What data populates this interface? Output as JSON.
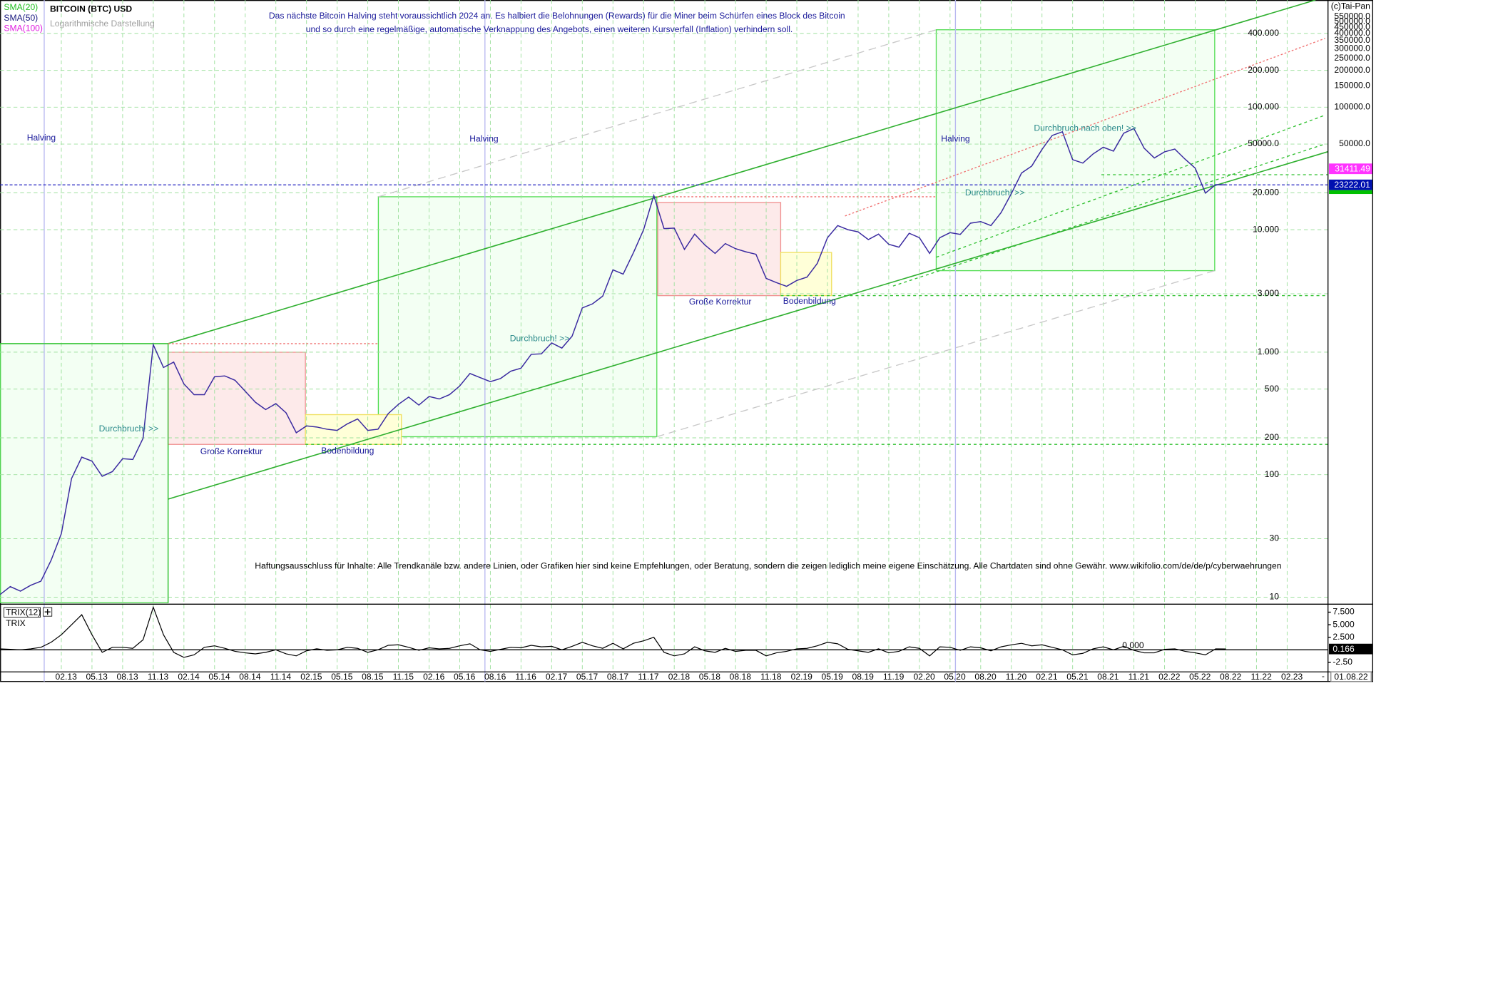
{
  "chart_data": {
    "type": "line",
    "title": "BITCOIN (BTC) USD",
    "subtitle": "Logarithmische Darstellung",
    "note": [
      "Das nächste Bitcoin Halving steht voraussichtlich 2024 an. Es halbiert die Belohnungen (Rewards) für die Miner beim Schürfen eines Block des Bitcoin",
      "und so durch eine regelmäßige, automatische Verknappung des Angebots, einen weiteren Kursverfall (Inflation) verhindern soll."
    ],
    "copyright": "(c)Tai-Pan",
    "disclaimer": "Haftungsausschluss für Inhalte: Alle Trendkanäle bzw. andere Linien, oder Grafiken hier sind keine Empfehlungen, oder Beratung, sondern die zeigen lediglich meine eigene Einschätzung. Alle Chartdaten sind ohne Gewähr.  www.wikifolio.com/de/de/p/cyberwaehrungen",
    "date_label": "01.08.22",
    "x_axis_end": "-",
    "indicators": [
      {
        "name": "SMA(20)",
        "color": "#22c022"
      },
      {
        "name": "SMA(50)",
        "color": "#1a1a80"
      },
      {
        "name": "SMA(100)",
        "color": "#e020e0"
      }
    ],
    "annotations": [
      "Halving",
      "Halving",
      "Halving",
      "Durchbruch! >>",
      "Durchbruch! >>",
      "Durchbruch! >>",
      "Durchbruch nach oben! >>",
      "Große Korrektur",
      "Große Korrektur",
      "Bodenbildung",
      "Bodenbildung"
    ],
    "log_scale": true,
    "grid": true,
    "xlim": [
      "2012-08",
      "2023-06"
    ],
    "ylim": [
      9,
      750000
    ],
    "x": [
      "2012-08",
      "2012-09",
      "2012-10",
      "2012-11",
      "2012-12",
      "2013-01",
      "2013-02",
      "2013-03",
      "2013-04",
      "2013-05",
      "2013-06",
      "2013-07",
      "2013-08",
      "2013-09",
      "2013-10",
      "2013-11",
      "2013-12",
      "2014-01",
      "2014-02",
      "2014-03",
      "2014-04",
      "2014-05",
      "2014-06",
      "2014-07",
      "2014-08",
      "2014-09",
      "2014-10",
      "2014-11",
      "2014-12",
      "2015-01",
      "2015-02",
      "2015-03",
      "2015-04",
      "2015-05",
      "2015-06",
      "2015-07",
      "2015-08",
      "2015-09",
      "2015-10",
      "2015-11",
      "2015-12",
      "2016-01",
      "2016-02",
      "2016-03",
      "2016-04",
      "2016-05",
      "2016-06",
      "2016-07",
      "2016-08",
      "2016-09",
      "2016-10",
      "2016-11",
      "2016-12",
      "2017-01",
      "2017-02",
      "2017-03",
      "2017-04",
      "2017-05",
      "2017-06",
      "2017-07",
      "2017-08",
      "2017-09",
      "2017-10",
      "2017-11",
      "2017-12",
      "2018-01",
      "2018-02",
      "2018-03",
      "2018-04",
      "2018-05",
      "2018-06",
      "2018-07",
      "2018-08",
      "2018-09",
      "2018-10",
      "2018-11",
      "2018-12",
      "2019-01",
      "2019-02",
      "2019-03",
      "2019-04",
      "2019-05",
      "2019-06",
      "2019-07",
      "2019-08",
      "2019-09",
      "2019-10",
      "2019-11",
      "2019-12",
      "2020-01",
      "2020-02",
      "2020-03",
      "2020-04",
      "2020-05",
      "2020-06",
      "2020-07",
      "2020-08",
      "2020-09",
      "2020-10",
      "2020-11",
      "2020-12",
      "2021-01",
      "2021-02",
      "2021-03",
      "2021-04",
      "2021-05",
      "2021-06",
      "2021-07",
      "2021-08",
      "2021-09",
      "2021-10",
      "2021-11",
      "2021-12",
      "2022-01",
      "2022-02",
      "2022-03",
      "2022-04",
      "2022-05",
      "2022-06",
      "2022-07",
      "2022-08"
    ],
    "series": [
      {
        "color": "#3a2aa0",
        "values": [
          10.5,
          12.2,
          11.2,
          12.5,
          13.5,
          20,
          33,
          93,
          139,
          129,
          97,
          106,
          135,
          133,
          198,
          1150,
          750,
          830,
          550,
          450,
          450,
          630,
          640,
          590,
          480,
          390,
          340,
          380,
          320,
          220,
          250,
          245,
          235,
          230,
          260,
          285,
          230,
          235,
          315,
          375,
          430,
          370,
          435,
          415,
          450,
          530,
          670,
          620,
          575,
          610,
          700,
          740,
          960,
          970,
          1190,
          1080,
          1350,
          2300,
          2480,
          2870,
          4700,
          4340,
          6470,
          10000,
          19000,
          10200,
          10300,
          6900,
          9200,
          7500,
          6400,
          7700,
          7000,
          6600,
          6300,
          4000,
          3700,
          3450,
          3850,
          4100,
          5300,
          8600,
          10800,
          10000,
          9600,
          8300,
          9200,
          7600,
          7200,
          9350,
          8600,
          6400,
          8600,
          9450,
          9150,
          11300,
          11650,
          10800,
          13800,
          19700,
          29000,
          33100,
          45200,
          58800,
          63000,
          37300,
          35000,
          41500,
          47100,
          43800,
          61300,
          67000,
          46300,
          38500,
          43200,
          45500,
          37700,
          31800,
          19900,
          23300,
          23222.01
        ]
      }
    ],
    "price_markers": [
      {
        "value": 31411.49,
        "color": "#ff33ff"
      }
    ],
    "yticks": [
      {
        "value": 400000,
        "label": "400.000"
      },
      {
        "value": 200000,
        "label": "200.000"
      },
      {
        "value": 100000,
        "label": "100.000"
      },
      {
        "value": 50000,
        "label": "50000.0"
      },
      {
        "value": 20000,
        "label": "20.000"
      },
      {
        "value": 10000,
        "label": "10.000"
      },
      {
        "value": 3000,
        "label": "3.000"
      },
      {
        "value": 1000,
        "label": "1.000"
      },
      500,
      200,
      100,
      30,
      10
    ],
    "yticks_outer": [
      {
        "value": 550000,
        "label": "550000.0"
      },
      {
        "value": 500000,
        "label": "500000.0"
      },
      {
        "value": 450000,
        "label": "450000.0"
      },
      {
        "value": 400000,
        "label": "400000.0"
      },
      {
        "value": 350000,
        "label": "350000.0"
      },
      {
        "value": 300000,
        "label": "300000.0"
      },
      {
        "value": 250000,
        "label": "250000.0"
      },
      {
        "value": 200000,
        "label": "200000.0"
      },
      {
        "value": 150000,
        "label": "150000.0"
      },
      {
        "value": 100000,
        "label": "100000.0"
      },
      {
        "value": 50000,
        "label": "50000.0"
      }
    ],
    "xticks": [
      {
        "value": "2013-02",
        "label": "02.13"
      },
      {
        "value": "2013-05",
        "label": "05.13"
      },
      {
        "value": "2013-08",
        "label": "08.13"
      },
      {
        "value": "2013-11",
        "label": "11.13"
      },
      {
        "value": "2014-02",
        "label": "02.14"
      },
      {
        "value": "2014-05",
        "label": "05.14"
      },
      {
        "value": "2014-08",
        "label": "08.14"
      },
      {
        "value": "2014-11",
        "label": "11.14"
      },
      {
        "value": "2015-02",
        "label": "02.15"
      },
      {
        "value": "2015-05",
        "label": "05.15"
      },
      {
        "value": "2015-08",
        "label": "08.15"
      },
      {
        "value": "2015-11",
        "label": "11.15"
      },
      {
        "value": "2016-02",
        "label": "02.16"
      },
      {
        "value": "2016-05",
        "label": "05.16"
      },
      {
        "value": "2016-08",
        "label": "08.16"
      },
      {
        "value": "2016-11",
        "label": "11.16"
      },
      {
        "value": "2017-02",
        "label": "02.17"
      },
      {
        "value": "2017-05",
        "label": "05.17"
      },
      {
        "value": "2017-08",
        "label": "08.17"
      },
      {
        "value": "2017-11",
        "label": "11.17"
      },
      {
        "value": "2018-02",
        "label": "02.18"
      },
      {
        "value": "2018-05",
        "label": "05.18"
      },
      {
        "value": "2018-08",
        "label": "08.18"
      },
      {
        "value": "2018-11",
        "label": "11.18"
      },
      {
        "value": "2019-02",
        "label": "02.19"
      },
      {
        "value": "2019-05",
        "label": "05.19"
      },
      {
        "value": "2019-08",
        "label": "08.19"
      },
      {
        "value": "2019-11",
        "label": "11.19"
      },
      {
        "value": "2020-02",
        "label": "02.20"
      },
      {
        "value": "2020-05",
        "label": "05.20"
      },
      {
        "value": "2020-08",
        "label": "08.20"
      },
      {
        "value": "2020-11",
        "label": "11.20"
      },
      {
        "value": "2021-02",
        "label": "02.21"
      },
      {
        "value": "2021-05",
        "label": "05.21"
      },
      {
        "value": "2021-08",
        "label": "08.21"
      },
      {
        "value": "2021-11",
        "label": "11.21"
      },
      {
        "value": "2022-02",
        "label": "02.22"
      },
      {
        "value": "2022-05",
        "label": "05.22"
      },
      {
        "value": "2022-08",
        "label": "08.22"
      },
      {
        "value": "2022-11",
        "label": "11.22"
      },
      {
        "value": "2023-02",
        "label": "02.23"
      }
    ],
    "trix": {
      "label": "TRIX(12)",
      "name": "TRIX",
      "color": "#000000",
      "ylim": [
        -4.2,
        8.8
      ],
      "yticks": [
        {
          "value": 7.5,
          "label": "7.500"
        },
        {
          "value": 5,
          "label": "5.000"
        },
        {
          "value": 2.5,
          "label": "2.500"
        },
        {
          "value": 0,
          "label": "0.000"
        },
        {
          "value": -2.5,
          "label": "-2.50"
        }
      ],
      "values": [
        0.2,
        0.1,
        0,
        0.2,
        0.5,
        1.5,
        3,
        5,
        7,
        3,
        -0.5,
        0.5,
        0.5,
        0.3,
        2,
        8.5,
        3,
        -0.5,
        -1.5,
        -1,
        0.5,
        0.8,
        0.3,
        -0.3,
        -0.6,
        -0.8,
        -0.5,
        0,
        -0.8,
        -1.2,
        -0.2,
        0.2,
        -0.1,
        0,
        0.5,
        0.3,
        -0.5,
        0,
        0.9,
        1,
        0.5,
        -0.1,
        0.4,
        0.2,
        0.3,
        0.8,
        1.2,
        0,
        -0.3,
        0.1,
        0.5,
        0.4,
        0.9,
        0.6,
        0.7,
        0,
        0.7,
        1.5,
        0.8,
        0.3,
        1.3,
        0.2,
        1.3,
        1.8,
        2.5,
        -0.5,
        -1.2,
        -0.8,
        0.6,
        -0.2,
        -0.5,
        0.3,
        -0.3,
        -0.1,
        -0.1,
        -1.2,
        -0.6,
        -0.3,
        0.2,
        0.3,
        0.8,
        1.5,
        1.2,
        0.1,
        -0.2,
        -0.5,
        0.2,
        -0.6,
        -0.3,
        0.6,
        0.3,
        -1.2,
        0.6,
        0.5,
        -0.1,
        0.6,
        0.4,
        -0.2,
        0.6,
        1,
        1.3,
        0.8,
        1,
        0.5,
        0,
        -1,
        -0.7,
        0.2,
        0.6,
        0,
        0.7,
        -0.1,
        -0.6,
        -0.6,
        0.1,
        0.2,
        -0.3,
        -0.6,
        -1,
        0.2,
        0.166
      ]
    }
  }
}
